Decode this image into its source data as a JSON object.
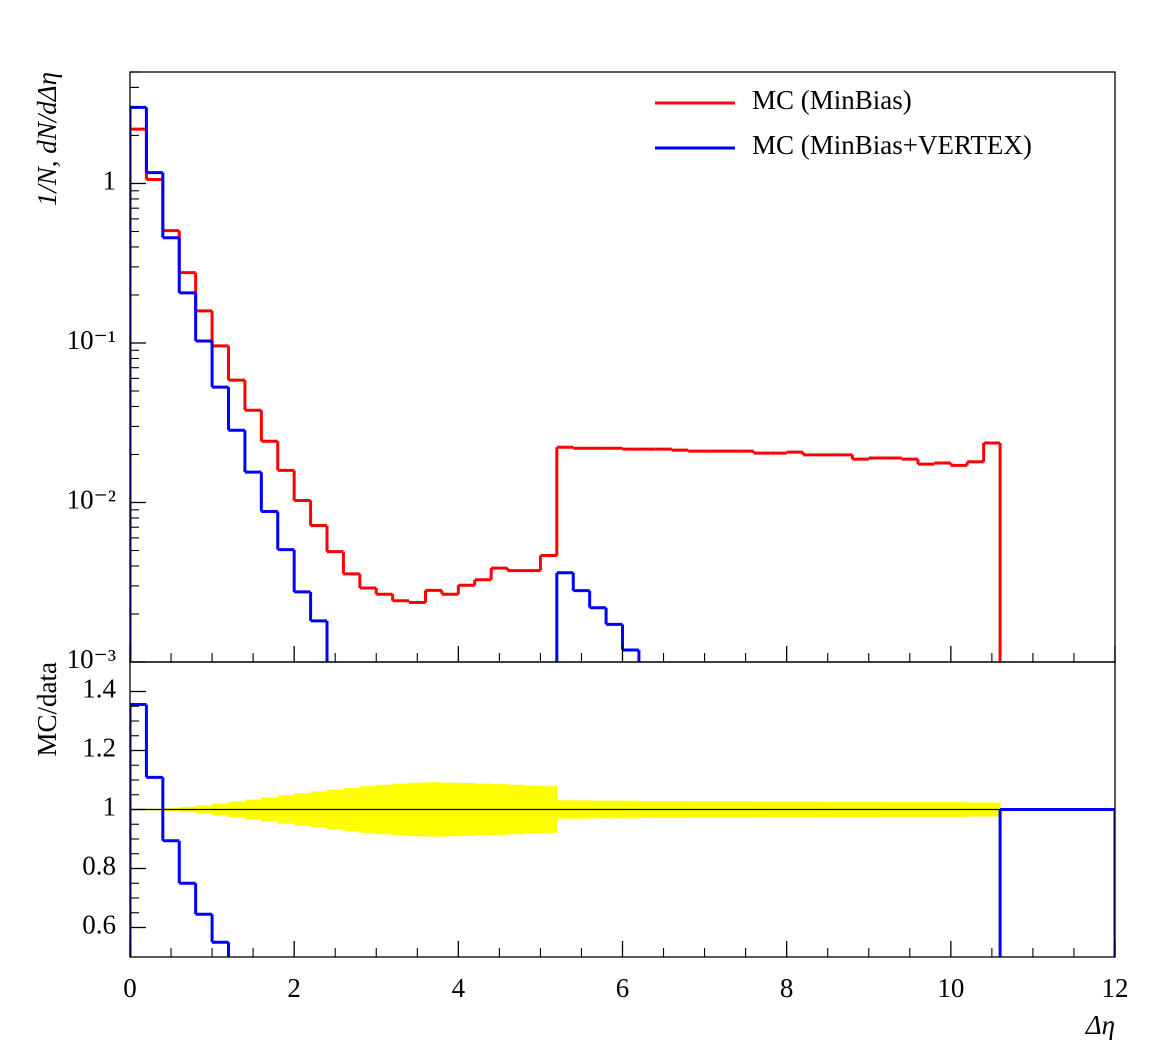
{
  "chart_data": [
    {
      "type": "histogram",
      "ylabel": "1/N, dN/dΔη",
      "log_y": true,
      "xlim": [
        0,
        12
      ],
      "xticks": [
        0,
        2,
        4,
        6,
        8,
        10,
        12
      ],
      "ylim": [
        0.001,
        5
      ],
      "yticks": [
        {
          "value": 0.001,
          "label": "10⁻³"
        },
        {
          "value": 0.01,
          "label": "10⁻²"
        },
        {
          "value": 0.1,
          "label": "10⁻¹"
        },
        1
      ],
      "legend": "top-right",
      "bins": [
        0,
        0.2,
        0.4,
        0.6,
        0.8,
        1,
        1.2,
        1.4,
        1.6,
        1.8,
        2,
        2.2,
        2.4,
        2.6,
        2.8,
        3,
        3.2,
        3.4,
        3.6,
        3.8,
        4,
        4.2,
        4.4,
        4.6,
        4.8,
        5,
        5.2,
        5.4,
        5.6,
        5.8,
        6,
        6.2,
        6.4,
        6.6,
        6.8,
        7,
        7.2,
        7.4,
        7.6,
        7.8,
        8,
        8.2,
        8.4,
        8.6,
        8.8,
        9,
        9.2,
        9.4,
        9.6,
        9.8,
        10,
        10.2,
        10.4,
        10.6
      ],
      "series": [
        {
          "name": "MC (MinBias)",
          "color": "#ff0000",
          "values": [
            2.19,
            1.06,
            0.506,
            0.276,
            0.159,
            0.096,
            0.0585,
            0.0379,
            0.0242,
            0.0159,
            0.0103,
            0.00717,
            0.00492,
            0.00357,
            0.00291,
            0.00266,
            0.00242,
            0.00236,
            0.00281,
            0.00266,
            0.00303,
            0.00328,
            0.00388,
            0.00374,
            0.00374,
            0.00465,
            0.0222,
            0.0219,
            0.0219,
            0.0219,
            0.0216,
            0.0216,
            0.0216,
            0.0213,
            0.021,
            0.021,
            0.021,
            0.021,
            0.0204,
            0.0204,
            0.0207,
            0.0199,
            0.0199,
            0.0199,
            0.0187,
            0.019,
            0.019,
            0.0187,
            0.0174,
            0.0177,
            0.0171,
            0.018,
            0.0236
          ]
        },
        {
          "name": "MC (MinBias+VERTEX)",
          "color": "#0000ff",
          "values": [
            3.0,
            1.17,
            0.457,
            0.206,
            0.103,
            0.0529,
            0.0284,
            0.0155,
            0.00878,
            0.00506,
            0.00275,
            0.00181,
            null,
            null,
            null,
            null,
            null,
            null,
            null,
            null,
            null,
            null,
            null,
            null,
            null,
            null,
            0.00363,
            0.0028,
            0.00219,
            0.00172,
            0.00119,
            null,
            null,
            null,
            null,
            null,
            null,
            null,
            null,
            null,
            null,
            null,
            null,
            null,
            null,
            null,
            null,
            null,
            null,
            null,
            null,
            null,
            null
          ]
        }
      ]
    },
    {
      "type": "ratio",
      "xlabel": "Δη",
      "ylabel": "MC/data",
      "xlim": [
        0,
        12
      ],
      "xticks": [
        0,
        2,
        4,
        6,
        8,
        10,
        12
      ],
      "ylim": [
        0.5,
        1.5
      ],
      "yticks": [
        0.6,
        0.8,
        1,
        1.2,
        1.4
      ],
      "reference": 1,
      "band_color": "#ffff00",
      "band_bins": [
        0,
        0.2,
        0.4,
        0.6,
        0.8,
        1,
        1.2,
        1.4,
        1.6,
        1.8,
        2,
        2.2,
        2.4,
        2.6,
        2.8,
        3,
        3.2,
        3.4,
        3.6,
        3.8,
        4,
        4.2,
        4.4,
        4.6,
        4.8,
        5,
        5.2,
        5.4,
        5.6,
        5.8,
        6,
        6.2,
        6.4,
        6.6,
        6.8,
        7,
        7.2,
        7.4,
        7.6,
        7.8,
        8,
        8.2,
        8.4,
        8.6,
        8.8,
        9,
        9.2,
        9.4,
        9.6,
        9.8,
        10,
        10.2,
        10.4,
        10.6
      ],
      "band_errors": [
        0.002,
        0.003,
        0.005,
        0.009,
        0.014,
        0.02,
        0.027,
        0.034,
        0.041,
        0.048,
        0.055,
        0.061,
        0.067,
        0.073,
        0.079,
        0.084,
        0.088,
        0.091,
        0.092,
        0.091,
        0.09,
        0.088,
        0.086,
        0.084,
        0.081,
        0.079,
        0.031,
        0.031,
        0.03,
        0.03,
        0.03,
        0.029,
        0.029,
        0.029,
        0.028,
        0.028,
        0.028,
        0.028,
        0.027,
        0.027,
        0.027,
        0.027,
        0.026,
        0.026,
        0.026,
        0.026,
        0.025,
        0.025,
        0.025,
        0.025,
        0.025,
        0.024,
        0.024
      ],
      "bins": [
        0,
        0.2,
        0.4,
        0.6,
        0.8,
        1,
        1.2,
        1.4,
        1.6,
        1.8,
        2,
        2.2,
        2.4,
        2.6,
        2.8,
        3,
        3.2,
        3.4,
        3.6,
        3.8,
        4,
        4.2,
        4.4,
        4.6,
        4.8,
        5,
        5.2,
        5.4,
        5.6,
        5.8,
        6,
        6.2,
        6.4,
        6.6,
        6.8,
        7,
        7.2,
        7.4,
        7.6,
        7.8,
        8,
        8.2,
        8.4,
        8.6,
        8.8,
        9,
        9.2,
        9.4,
        9.6,
        9.8,
        10,
        10.2,
        10.4,
        10.6,
        12
      ],
      "ratio": {
        "color": "#0000ff",
        "values": [
          1.356,
          1.109,
          0.894,
          0.75,
          0.645,
          0.55,
          null,
          null,
          null,
          null,
          null,
          null,
          null,
          null,
          null,
          null,
          null,
          null,
          null,
          null,
          null,
          null,
          null,
          null,
          null,
          null,
          null,
          null,
          null,
          null,
          null,
          null,
          null,
          null,
          null,
          null,
          null,
          null,
          null,
          null,
          null,
          null,
          null,
          null,
          null,
          null,
          null,
          null,
          null,
          null,
          null,
          null,
          null,
          1
        ]
      }
    }
  ]
}
